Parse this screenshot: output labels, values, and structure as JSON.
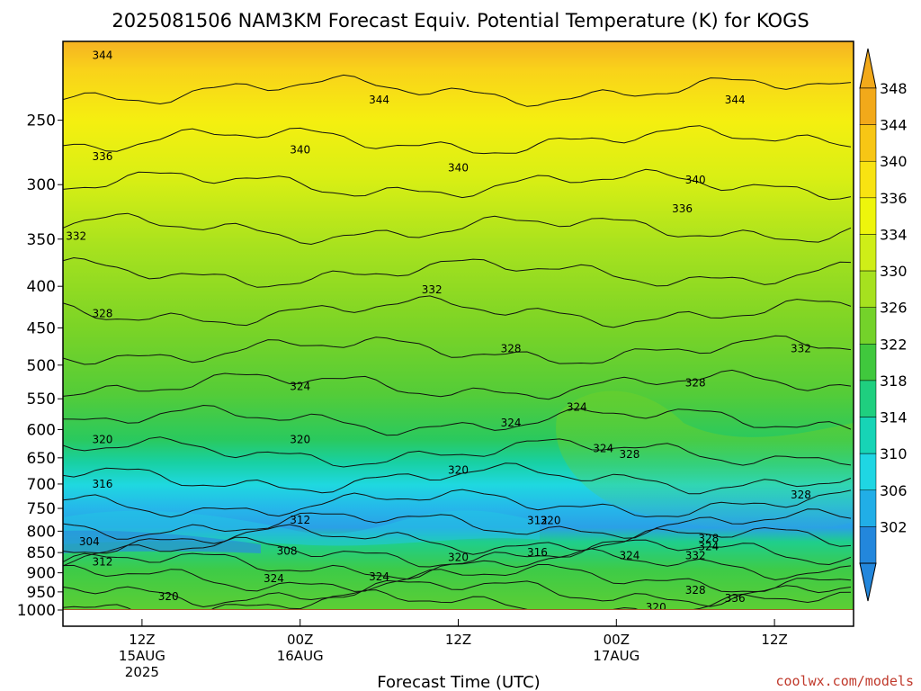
{
  "chart_data": {
    "type": "heatmap",
    "title": "2025081506 NAM3KM Forecast Equiv. Potential Temperature (K) for KOGS",
    "xlabel": "Forecast Time (UTC)",
    "ylabel": "",
    "y_scale": "log",
    "y_direction": "inverted",
    "ylim": [
      1000,
      200
    ],
    "y_ticks": [
      250,
      300,
      350,
      400,
      450,
      500,
      550,
      600,
      650,
      700,
      750,
      800,
      850,
      900,
      950,
      1000
    ],
    "xlim": [
      "2025-08-15T06:00Z",
      "2025-08-17T18:00Z"
    ],
    "x_ticks": [
      {
        "time": "2025-08-15T12:00Z",
        "lines": [
          "12Z",
          "15AUG",
          "2025"
        ]
      },
      {
        "time": "2025-08-16T00:00Z",
        "lines": [
          "00Z",
          "16AUG"
        ]
      },
      {
        "time": "2025-08-16T12:00Z",
        "lines": [
          "12Z"
        ]
      },
      {
        "time": "2025-08-17T00:00Z",
        "lines": [
          "00Z",
          "17AUG"
        ]
      },
      {
        "time": "2025-08-17T12:00Z",
        "lines": [
          "12Z"
        ]
      }
    ],
    "colorbar": {
      "labels": [
        348,
        344,
        340,
        336,
        334,
        330,
        326,
        322,
        318,
        314,
        310,
        306,
        302
      ],
      "colors": [
        "#f2a91a",
        "#f7c615",
        "#f8e312",
        "#eef50c",
        "#cfee18",
        "#a6e11f",
        "#74d22a",
        "#40c83d",
        "#1fcf7f",
        "#17d4b6",
        "#1fd6e3",
        "#21aee7",
        "#2387dc"
      ],
      "extend": "both"
    },
    "contour_interval": 4,
    "contour_labels": [
      {
        "time": "2025-08-15T09:00Z",
        "p": 208,
        "value": "344"
      },
      {
        "time": "2025-08-15T09:00Z",
        "p": 277,
        "value": "336"
      },
      {
        "time": "2025-08-15T07:00Z",
        "p": 347,
        "value": "332"
      },
      {
        "time": "2025-08-15T09:00Z",
        "p": 432,
        "value": "328"
      },
      {
        "time": "2025-08-15T09:00Z",
        "p": 617,
        "value": "320"
      },
      {
        "time": "2025-08-15T09:00Z",
        "p": 700,
        "value": "316"
      },
      {
        "time": "2025-08-15T08:00Z",
        "p": 824,
        "value": "304"
      },
      {
        "time": "2025-08-15T09:00Z",
        "p": 873,
        "value": "312"
      },
      {
        "time": "2025-08-15T14:00Z",
        "p": 962,
        "value": "320"
      },
      {
        "time": "2025-08-16T00:00Z",
        "p": 272,
        "value": "340"
      },
      {
        "time": "2025-08-16T00:00Z",
        "p": 531,
        "value": "324"
      },
      {
        "time": "2025-08-16T00:00Z",
        "p": 617,
        "value": "320"
      },
      {
        "time": "2025-08-16T00:00Z",
        "p": 775,
        "value": "312"
      },
      {
        "time": "2025-08-15T23:00Z",
        "p": 846,
        "value": "308"
      },
      {
        "time": "2025-08-15T22:00Z",
        "p": 915,
        "value": "324"
      },
      {
        "time": "2025-08-16T06:00Z",
        "p": 236,
        "value": "344"
      },
      {
        "time": "2025-08-16T12:00Z",
        "p": 286,
        "value": "340"
      },
      {
        "time": "2025-08-16T10:00Z",
        "p": 404,
        "value": "332"
      },
      {
        "time": "2025-08-16T12:00Z",
        "p": 673,
        "value": "320"
      },
      {
        "time": "2025-08-16T12:00Z",
        "p": 862,
        "value": "320"
      },
      {
        "time": "2025-08-16T06:00Z",
        "p": 910,
        "value": "324"
      },
      {
        "time": "2025-08-16T16:00Z",
        "p": 477,
        "value": "328"
      },
      {
        "time": "2025-08-16T16:00Z",
        "p": 589,
        "value": "324"
      },
      {
        "time": "2025-08-16T21:00Z",
        "p": 563,
        "value": "324"
      },
      {
        "time": "2025-08-16T18:00Z",
        "p": 776,
        "value": "312"
      },
      {
        "time": "2025-08-16T19:00Z",
        "p": 776,
        "value": "320"
      },
      {
        "time": "2025-08-16T18:00Z",
        "p": 850,
        "value": "316"
      },
      {
        "time": "2025-08-16T23:00Z",
        "p": 633,
        "value": "324"
      },
      {
        "time": "2025-08-17T01:00Z",
        "p": 644,
        "value": "328"
      },
      {
        "time": "2025-08-17T01:00Z",
        "p": 857,
        "value": "324"
      },
      {
        "time": "2025-08-17T05:00Z",
        "p": 321,
        "value": "336"
      },
      {
        "time": "2025-08-17T06:00Z",
        "p": 296,
        "value": "340"
      },
      {
        "time": "2025-08-17T06:00Z",
        "p": 526,
        "value": "328"
      },
      {
        "time": "2025-08-17T09:00Z",
        "p": 236,
        "value": "344"
      },
      {
        "time": "2025-08-17T14:00Z",
        "p": 477,
        "value": "332"
      },
      {
        "time": "2025-08-17T14:00Z",
        "p": 722,
        "value": "328"
      },
      {
        "time": "2025-08-17T07:00Z",
        "p": 817,
        "value": "328"
      },
      {
        "time": "2025-08-17T07:00Z",
        "p": 836,
        "value": "324"
      },
      {
        "time": "2025-08-17T06:00Z",
        "p": 857,
        "value": "332"
      },
      {
        "time": "2025-08-17T06:00Z",
        "p": 946,
        "value": "328"
      },
      {
        "time": "2025-08-17T09:00Z",
        "p": 967,
        "value": "336"
      },
      {
        "time": "2025-08-17T03:00Z",
        "p": 992,
        "value": "320"
      }
    ]
  },
  "footer": {
    "credit": "coolwx.com/models"
  }
}
